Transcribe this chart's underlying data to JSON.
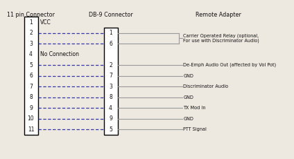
{
  "header_11pin": "11 pin Connector",
  "header_db9": "DB-9 Connector",
  "header_remote": "Remote Adapter",
  "bg_color": "#ede8e0",
  "box_color": "#000000",
  "line_color": "#3333aa",
  "gray_line_color": "#999999",
  "text_color": "#111111",
  "pin11_notes": {
    "1": "VCC",
    "4": "No Connection"
  },
  "connections": [
    {
      "pin11": 2,
      "db9": 1
    },
    {
      "pin11": 3,
      "db9": 6
    },
    {
      "pin11": 5,
      "db9": 2
    },
    {
      "pin11": 6,
      "db9": 7
    },
    {
      "pin11": 7,
      "db9": 3
    },
    {
      "pin11": 8,
      "db9": 8
    },
    {
      "pin11": 9,
      "db9": 4
    },
    {
      "pin11": 10,
      "db9": 9
    },
    {
      "pin11": 11,
      "db9": 5
    }
  ],
  "db9_order": [
    1,
    6,
    2,
    7,
    3,
    8,
    4,
    9,
    5
  ],
  "single_labels": {
    "2": "De-Emph Audio Out (affected by Vol Pot)",
    "7": "GND",
    "3": "Discriminator Audio",
    "8": "GND",
    "4": "TX Mod In",
    "9": "GND",
    "5": "PTT Signal"
  },
  "bracket_label_line1": "Carrier Operated Relay (optional,",
  "bracket_label_line2": "For use with Discriminator Audio)"
}
